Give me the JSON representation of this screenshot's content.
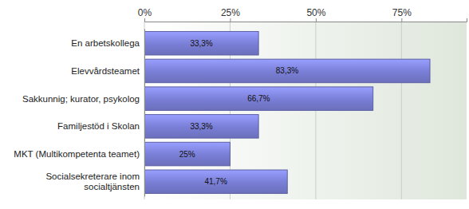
{
  "chart_data": {
    "type": "bar",
    "orientation": "horizontal",
    "categories": [
      "En arbetskollega",
      "Elevvårdsteamet",
      "Sakkunnig; kurator, psykolog",
      "Familjestöd i Skolan",
      "MKT (Multikompetenta teamet)",
      "Socialsekreterare inom socialtjänsten"
    ],
    "values": [
      33.3,
      83.3,
      66.7,
      33.3,
      25,
      41.7
    ],
    "value_labels": [
      "33,3%",
      "83,3%",
      "66,7%",
      "33,3%",
      "25%",
      "41,7%"
    ],
    "data_labels": true,
    "color": "#7b80d8",
    "xlim": [
      0,
      94
    ],
    "xticks": [
      {
        "value": 0,
        "label": "0%"
      },
      {
        "value": 25,
        "label": "25%"
      },
      {
        "value": 50,
        "label": "50%"
      },
      {
        "value": 75,
        "label": "75%"
      }
    ],
    "grid": true
  }
}
